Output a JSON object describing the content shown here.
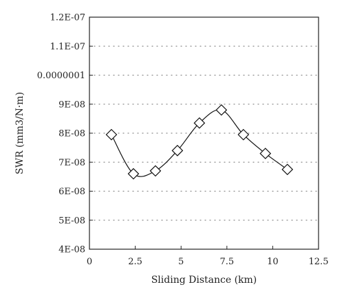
{
  "chart_data": {
    "type": "line",
    "title": "",
    "xlabel": "Sliding Distance (km)",
    "ylabel": "SWR (mm3/N·m)",
    "xlim": [
      0,
      12.5
    ],
    "ylim": [
      4e-08,
      1.2e-07
    ],
    "x_ticks": [
      0,
      2.5,
      5,
      7.5,
      10,
      12.5
    ],
    "x_tick_labels": [
      "0",
      "2.5",
      "5",
      "7.5",
      "10",
      "12.5"
    ],
    "y_ticks": [
      4e-08,
      5e-08,
      6e-08,
      7e-08,
      8e-08,
      9e-08,
      1e-07,
      1.1e-07,
      1.2e-07
    ],
    "y_tick_labels": [
      "4E-08",
      "5E-08",
      "6E-08",
      "7E-08",
      "8E-08",
      "9E-08",
      "0.0000001",
      "1.1E-07",
      "1.2E-07"
    ],
    "grid": "horizontal-dotted",
    "marker": "diamond",
    "line_style": "smooth",
    "colors": {
      "line": "#111111",
      "marker_fill": "#ffffff",
      "grid": "#8a8a8a"
    },
    "series": [
      {
        "x": [
          1.2,
          2.4,
          3.6,
          4.8,
          6.0,
          7.2,
          8.4,
          9.6,
          10.8
        ],
        "values": [
          7.95e-08,
          6.6e-08,
          6.7e-08,
          7.4e-08,
          8.35e-08,
          8.8e-08,
          7.95e-08,
          7.3e-08,
          6.75e-08
        ]
      }
    ]
  }
}
